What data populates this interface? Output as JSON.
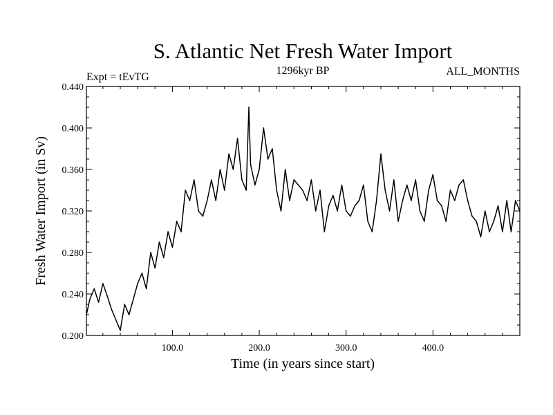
{
  "chart_data": {
    "type": "line",
    "title": "S. Atlantic Net Fresh Water Import",
    "left_label": "Expt = tEvTG",
    "center_label": "1296kyr BP",
    "right_label": "ALL_MONTHS",
    "xlabel": "Time (in years since start)",
    "ylabel": "Fresh Water Import (in Sv)",
    "xlim": [
      1,
      500
    ],
    "ylim": [
      0.2,
      0.44
    ],
    "x_ticks": [
      100,
      200,
      300,
      400
    ],
    "x_tick_labels": [
      "100.0",
      "200.0",
      "300.0",
      "400.0"
    ],
    "y_ticks": [
      0.2,
      0.24,
      0.28,
      0.32,
      0.36,
      0.4,
      0.44
    ],
    "y_tick_labels": [
      "0.200",
      "0.240",
      "0.280",
      "0.320",
      "0.360",
      "0.400",
      "0.440"
    ],
    "grid": false,
    "series": [
      {
        "name": "Fresh Water Import",
        "color": "#000000",
        "x": [
          1,
          5,
          10,
          15,
          20,
          25,
          30,
          35,
          40,
          45,
          50,
          55,
          60,
          65,
          70,
          75,
          80,
          85,
          90,
          95,
          100,
          105,
          110,
          115,
          120,
          125,
          130,
          135,
          140,
          145,
          150,
          155,
          160,
          165,
          170,
          175,
          180,
          185,
          188,
          190,
          195,
          200,
          205,
          210,
          215,
          220,
          225,
          230,
          235,
          240,
          245,
          250,
          255,
          260,
          265,
          270,
          275,
          280,
          285,
          290,
          295,
          300,
          305,
          310,
          315,
          320,
          325,
          330,
          335,
          340,
          345,
          350,
          355,
          360,
          365,
          370,
          375,
          380,
          385,
          390,
          395,
          400,
          405,
          410,
          415,
          420,
          425,
          430,
          435,
          440,
          445,
          450,
          455,
          460,
          465,
          470,
          475,
          480,
          485,
          490,
          495,
          500
        ],
        "values": [
          0.22,
          0.235,
          0.245,
          0.232,
          0.25,
          0.238,
          0.225,
          0.215,
          0.205,
          0.23,
          0.22,
          0.235,
          0.25,
          0.26,
          0.245,
          0.28,
          0.265,
          0.29,
          0.275,
          0.3,
          0.285,
          0.31,
          0.3,
          0.34,
          0.33,
          0.35,
          0.32,
          0.315,
          0.33,
          0.35,
          0.33,
          0.36,
          0.34,
          0.375,
          0.36,
          0.39,
          0.35,
          0.34,
          0.42,
          0.365,
          0.345,
          0.36,
          0.4,
          0.37,
          0.38,
          0.34,
          0.32,
          0.36,
          0.33,
          0.35,
          0.345,
          0.34,
          0.33,
          0.35,
          0.32,
          0.34,
          0.3,
          0.325,
          0.335,
          0.32,
          0.345,
          0.32,
          0.315,
          0.325,
          0.33,
          0.345,
          0.31,
          0.3,
          0.33,
          0.375,
          0.34,
          0.32,
          0.35,
          0.31,
          0.33,
          0.345,
          0.33,
          0.35,
          0.32,
          0.31,
          0.34,
          0.355,
          0.33,
          0.325,
          0.31,
          0.34,
          0.33,
          0.345,
          0.35,
          0.33,
          0.315,
          0.31,
          0.295,
          0.32,
          0.3,
          0.31,
          0.325,
          0.3,
          0.33,
          0.3,
          0.33,
          0.32
        ]
      }
    ]
  }
}
